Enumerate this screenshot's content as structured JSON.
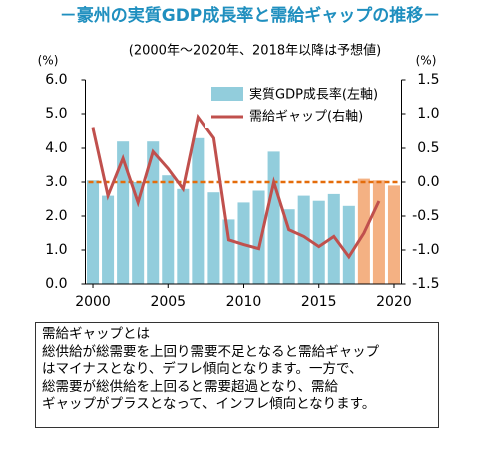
{
  "chart_data": {
    "type": "bar-line",
    "title": "－豪州の実質GDP成長率と需給ギャップの推移－",
    "subtitle": "(2000年～2020年、2018年以降は予想値)",
    "y_label": "(%)",
    "y2_label": "(%)",
    "x": [
      2000,
      2001,
      2002,
      2003,
      2004,
      2005,
      2006,
      2007,
      2008,
      2009,
      2010,
      2011,
      2012,
      2013,
      2014,
      2015,
      2016,
      2017,
      2018,
      2019,
      2020
    ],
    "xlim": [
      1999.5,
      2020.5
    ],
    "xticks": [
      2000,
      2005,
      2010,
      2015,
      2020
    ],
    "ylim": [
      0,
      6
    ],
    "yticks": [
      {
        "value": 0,
        "label": "0.0"
      },
      {
        "value": 1,
        "label": "1.0"
      },
      {
        "value": 2,
        "label": "2.0"
      },
      {
        "value": 3,
        "label": "3.0"
      },
      {
        "value": 4,
        "label": "4.0"
      },
      {
        "value": 5,
        "label": "5.0"
      },
      {
        "value": 6,
        "label": "6.0"
      }
    ],
    "y2lim": [
      -1.5,
      1.5
    ],
    "y2ticks": [
      -1.5,
      {
        "value": -1,
        "label": "-1.0"
      },
      -0.5,
      {
        "value": 0,
        "label": "0.0"
      },
      0.5,
      {
        "value": 1,
        "label": "1.0"
      },
      1.5
    ],
    "series": [
      {
        "name": "実質GDP成長率(左軸)",
        "type": "bar",
        "color": "#92cddc",
        "colors": [
          "#92cddc",
          "#92cddc",
          "#92cddc",
          "#92cddc",
          "#92cddc",
          "#92cddc",
          "#92cddc",
          "#92cddc",
          "#92cddc",
          "#92cddc",
          "#92cddc",
          "#92cddc",
          "#92cddc",
          "#92cddc",
          "#92cddc",
          "#92cddc",
          "#92cddc",
          "#92cddc",
          "#f4b183",
          "#f4b183",
          "#f4b183"
        ],
        "values": [
          3.05,
          2.6,
          4.2,
          3.0,
          4.2,
          3.2,
          2.8,
          4.3,
          2.7,
          1.9,
          2.4,
          2.75,
          3.9,
          2.2,
          2.6,
          2.45,
          2.65,
          2.3,
          3.1,
          3.05,
          2.9
        ]
      },
      {
        "name": "需給ギャップ(右軸)",
        "type": "line",
        "axis": "y2",
        "color": "#c0504d",
        "values": [
          0.8,
          -0.2,
          0.35,
          -0.3,
          0.45,
          0.2,
          -0.1,
          0.95,
          0.65,
          -0.85,
          -0.92,
          -0.98,
          0.0,
          -0.7,
          -0.8,
          -0.95,
          -0.8,
          -1.1,
          -0.75,
          -0.28,
          null
        ]
      }
    ],
    "zero_line_color": "#e46c0a"
  },
  "note": {
    "heading": "需給ギャップとは",
    "lines": [
      "総供給が総需要を上回り需要不足となると需給ギャップ",
      "はマイナスとなり、デフレ傾向となります。一方で、",
      "総需要が総供給を上回ると需要超過となり、需給",
      "ギャップがプラスとなって、インフレ傾向となります。"
    ]
  }
}
